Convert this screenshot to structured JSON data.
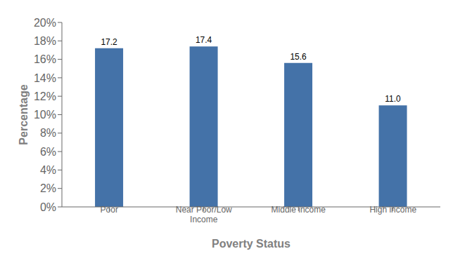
{
  "chart_data": {
    "type": "bar",
    "categories": [
      "Poor",
      "Near Poor/Low\nIncome",
      "Middle income",
      "High income"
    ],
    "values": [
      17.2,
      17.4,
      15.6,
      11.0
    ],
    "value_labels": [
      "17.2",
      "17.4",
      "15.6",
      "11.0"
    ],
    "data_labels": true,
    "color": "#4472a8",
    "xlabel": "Poverty Status",
    "ylabel": "Percentage",
    "ylim": [
      0,
      20
    ],
    "yticks": [
      {
        "value": 0,
        "label": "0%"
      },
      {
        "value": 2,
        "label": "2%"
      },
      {
        "value": 4,
        "label": "4%"
      },
      {
        "value": 6,
        "label": "6%"
      },
      {
        "value": 8,
        "label": "8%"
      },
      {
        "value": 10,
        "label": "10%"
      },
      {
        "value": 12,
        "label": "12%"
      },
      {
        "value": 14,
        "label": "14%"
      },
      {
        "value": 16,
        "label": "16%"
      },
      {
        "value": 18,
        "label": "18%"
      },
      {
        "value": 20,
        "label": "20%"
      }
    ],
    "grid": false
  }
}
